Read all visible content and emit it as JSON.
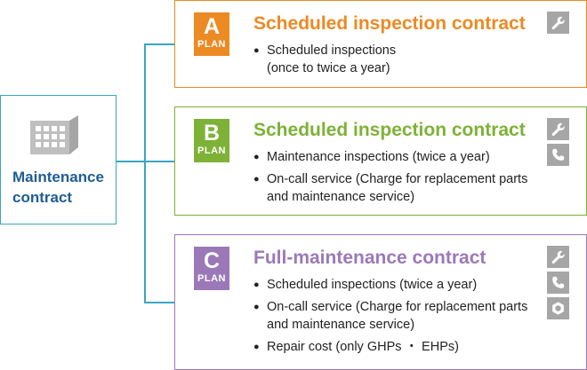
{
  "root": {
    "label_line1": "Maintenance",
    "label_line2": "contract",
    "icon": "building-icon"
  },
  "colors": {
    "connector": "#3aa6bf",
    "plan_a": "#ec8a24",
    "plan_b": "#7db236",
    "plan_c": "#9b79b8",
    "root_text": "#1f5d93",
    "service_icon_bg": "#a6a6a6"
  },
  "plans": [
    {
      "letter": "A",
      "sub": "PLAN",
      "title": "Scheduled inspection contract",
      "items": [
        "Scheduled inspections",
        "(once to twice a year)"
      ],
      "icons": [
        "wrench-icon"
      ]
    },
    {
      "letter": "B",
      "sub": "PLAN",
      "title": "Scheduled inspection contract",
      "items": [
        "Maintenance inspections (twice a year)",
        "On-call service (Charge for replacement parts and maintenance service)"
      ],
      "icons": [
        "wrench-icon",
        "phone-icon"
      ]
    },
    {
      "letter": "C",
      "sub": "PLAN",
      "title": "Full-maintenance contract",
      "items": [
        "Scheduled inspections (twice a year)",
        "On-call service (Charge for replacement parts and maintenance service)",
        "Repair cost (only GHPs ・ EHPs)"
      ],
      "icons": [
        "wrench-icon",
        "phone-icon",
        "nut-icon"
      ]
    }
  ]
}
